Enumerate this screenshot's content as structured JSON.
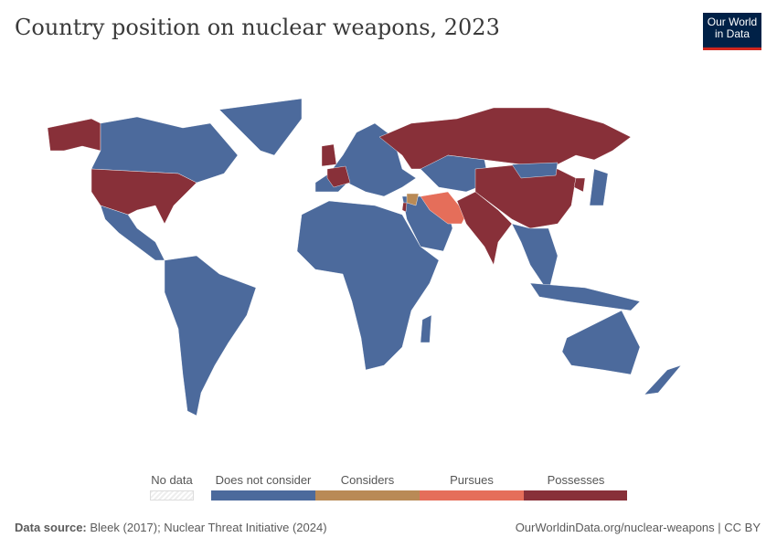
{
  "title": "Country position on nuclear weapons, 2023",
  "logo": {
    "line1": "Our World",
    "line2": "in Data"
  },
  "colors": {
    "does_not_consider": "#4c6a9c",
    "considers": "#b98a56",
    "pursues": "#e56e5a",
    "possesses": "#883039",
    "no_data": "#eeeeee"
  },
  "legend": {
    "no_data": "No data",
    "items": [
      {
        "label": "Does not consider",
        "color": "#4c6a9c"
      },
      {
        "label": "Considers",
        "color": "#b98a56"
      },
      {
        "label": "Pursues",
        "color": "#e56e5a"
      },
      {
        "label": "Possesses",
        "color": "#883039"
      }
    ]
  },
  "footer": {
    "source_label": "Data source:",
    "source": "Bleek (2017); Nuclear Threat Initiative (2024)",
    "url": "OurWorldinData.org/nuclear-weapons | CC BY"
  }
}
